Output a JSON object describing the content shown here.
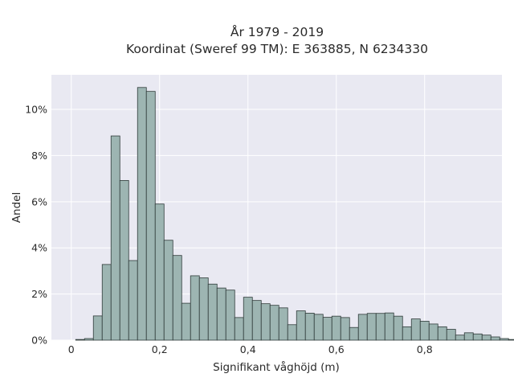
{
  "chart_data": {
    "type": "bar",
    "title": "År 1979 - 2019",
    "subtitle": "Koordinat (Sweref 99 TM): E 363885, N 6234330",
    "xlabel": "Signifikant våghöjd (m)",
    "ylabel": "Andel",
    "xlim": [
      -0.045,
      0.975
    ],
    "ylim": [
      0,
      11.5
    ],
    "x_ticks": [
      0,
      0.2,
      0.4,
      0.6,
      0.8
    ],
    "x_tick_labels": [
      "0",
      "0,2",
      "0,4",
      "0,6",
      "0,8"
    ],
    "y_ticks": [
      0,
      2,
      4,
      6,
      8,
      10
    ],
    "y_tick_labels": [
      "0%",
      "2%",
      "4%",
      "6%",
      "8%",
      "10%"
    ],
    "grid": true,
    "bar_color": "#9db5b2",
    "bar_edge_color": "#2f3b39",
    "plot_background": "#e9e9f2",
    "bin_width": 0.02,
    "bin_start": 0.01,
    "values": [
      0.03,
      0.07,
      1.05,
      3.28,
      8.85,
      6.92,
      3.45,
      10.95,
      10.78,
      5.9,
      4.33,
      3.67,
      1.6,
      2.79,
      2.7,
      2.43,
      2.26,
      2.17,
      0.98,
      1.86,
      1.72,
      1.58,
      1.51,
      1.4,
      0.67,
      1.27,
      1.17,
      1.12,
      0.99,
      1.04,
      0.98,
      0.55,
      1.12,
      1.16,
      1.16,
      1.18,
      1.04,
      0.58,
      0.92,
      0.82,
      0.7,
      0.58,
      0.47,
      0.22,
      0.32,
      0.27,
      0.22,
      0.14,
      0.07,
      0.03
    ]
  }
}
